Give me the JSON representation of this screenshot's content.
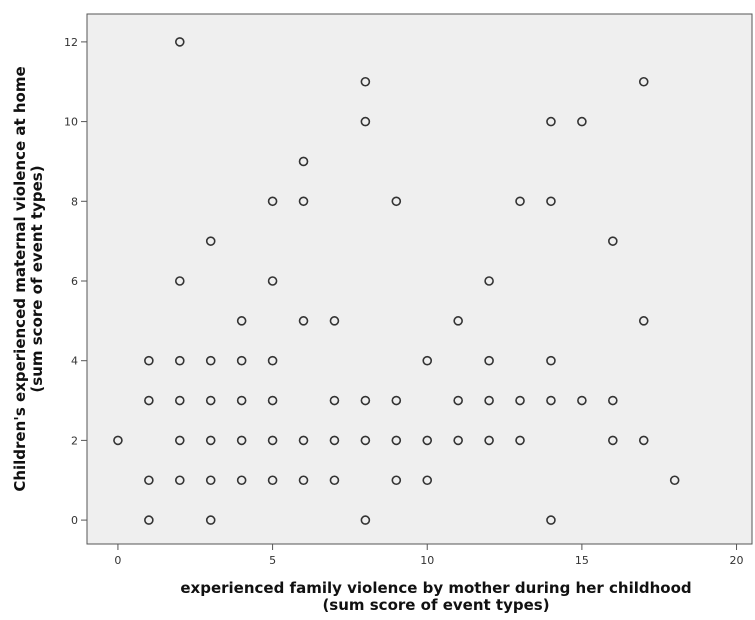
{
  "chart_data": {
    "type": "scatter",
    "xlabel_line1": "experienced family violence by mother during her childhood",
    "xlabel_line2": "(sum score of event types)",
    "ylabel_line1": "Children's experienced maternal violence at home",
    "ylabel_line2": "(sum score of event types)",
    "xlim": [
      -1,
      20.5
    ],
    "ylim": [
      -0.6,
      12.7
    ],
    "xticks": [
      0,
      5,
      10,
      15,
      20
    ],
    "yticks": [
      0,
      2,
      4,
      6,
      8,
      10,
      12
    ],
    "grid": false,
    "background": "#efefef",
    "marker_color": "#333333",
    "points": [
      {
        "x": 0,
        "y": 2
      },
      {
        "x": 1,
        "y": 0
      },
      {
        "x": 1,
        "y": 1
      },
      {
        "x": 1,
        "y": 3
      },
      {
        "x": 1,
        "y": 4
      },
      {
        "x": 2,
        "y": 1
      },
      {
        "x": 2,
        "y": 2
      },
      {
        "x": 2,
        "y": 3
      },
      {
        "x": 2,
        "y": 4
      },
      {
        "x": 2,
        "y": 6
      },
      {
        "x": 2,
        "y": 12
      },
      {
        "x": 3,
        "y": 0
      },
      {
        "x": 3,
        "y": 1
      },
      {
        "x": 3,
        "y": 2
      },
      {
        "x": 3,
        "y": 3
      },
      {
        "x": 3,
        "y": 4
      },
      {
        "x": 3,
        "y": 7
      },
      {
        "x": 4,
        "y": 1
      },
      {
        "x": 4,
        "y": 2
      },
      {
        "x": 4,
        "y": 3
      },
      {
        "x": 4,
        "y": 4
      },
      {
        "x": 4,
        "y": 5
      },
      {
        "x": 5,
        "y": 1
      },
      {
        "x": 5,
        "y": 2
      },
      {
        "x": 5,
        "y": 3
      },
      {
        "x": 5,
        "y": 4
      },
      {
        "x": 5,
        "y": 6
      },
      {
        "x": 5,
        "y": 8
      },
      {
        "x": 6,
        "y": 1
      },
      {
        "x": 6,
        "y": 2
      },
      {
        "x": 6,
        "y": 5
      },
      {
        "x": 6,
        "y": 8
      },
      {
        "x": 6,
        "y": 9
      },
      {
        "x": 7,
        "y": 1
      },
      {
        "x": 7,
        "y": 2
      },
      {
        "x": 7,
        "y": 3
      },
      {
        "x": 7,
        "y": 5
      },
      {
        "x": 8,
        "y": 0
      },
      {
        "x": 8,
        "y": 2
      },
      {
        "x": 8,
        "y": 3
      },
      {
        "x": 8,
        "y": 10
      },
      {
        "x": 8,
        "y": 11
      },
      {
        "x": 9,
        "y": 1
      },
      {
        "x": 9,
        "y": 2
      },
      {
        "x": 9,
        "y": 3
      },
      {
        "x": 9,
        "y": 8
      },
      {
        "x": 10,
        "y": 1
      },
      {
        "x": 10,
        "y": 2
      },
      {
        "x": 10,
        "y": 4
      },
      {
        "x": 11,
        "y": 2
      },
      {
        "x": 11,
        "y": 3
      },
      {
        "x": 11,
        "y": 5
      },
      {
        "x": 12,
        "y": 2
      },
      {
        "x": 12,
        "y": 3
      },
      {
        "x": 12,
        "y": 4
      },
      {
        "x": 12,
        "y": 6
      },
      {
        "x": 13,
        "y": 2
      },
      {
        "x": 13,
        "y": 3
      },
      {
        "x": 13,
        "y": 8
      },
      {
        "x": 14,
        "y": 0
      },
      {
        "x": 14,
        "y": 3
      },
      {
        "x": 14,
        "y": 4
      },
      {
        "x": 14,
        "y": 8
      },
      {
        "x": 14,
        "y": 10
      },
      {
        "x": 15,
        "y": 3
      },
      {
        "x": 15,
        "y": 10
      },
      {
        "x": 16,
        "y": 2
      },
      {
        "x": 16,
        "y": 3
      },
      {
        "x": 16,
        "y": 7
      },
      {
        "x": 17,
        "y": 2
      },
      {
        "x": 17,
        "y": 5
      },
      {
        "x": 17,
        "y": 11
      },
      {
        "x": 18,
        "y": 1
      }
    ]
  }
}
